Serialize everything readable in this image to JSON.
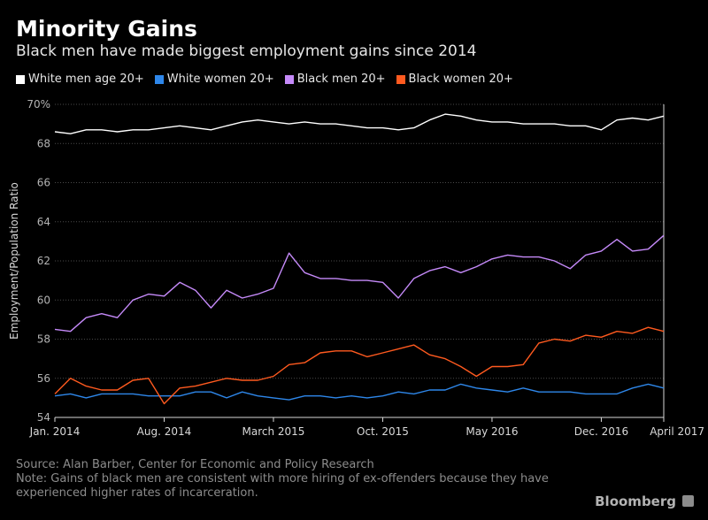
{
  "header": {
    "title": "Minority Gains",
    "subtitle": "Black men have made biggest employment gains since 2014"
  },
  "legend": [
    {
      "label": "White men age 20+",
      "color": "#ffffff"
    },
    {
      "label": "White women 20+",
      "color": "#2e87ea"
    },
    {
      "label": "Black men 20+",
      "color": "#c58af9"
    },
    {
      "label": "Black women 20+",
      "color": "#ff5a1f"
    }
  ],
  "footer": {
    "source": "Source: Alan Barber, Center for Economic and Policy Research",
    "note": "Note: Gains of black men are consistent with more hiring of ex-offenders because they have experienced higher rates of incarceration.",
    "brand": "Bloomberg"
  },
  "chart_data": {
    "type": "line",
    "ylabel": "Employment/Population Ratio",
    "ylim": [
      54,
      70
    ],
    "yticks": [
      54,
      56,
      58,
      60,
      62,
      64,
      66,
      68,
      70
    ],
    "ytick_labels": [
      "54",
      "56",
      "58",
      "60",
      "62",
      "64",
      "66",
      "68",
      "70%"
    ],
    "x": [
      "2014-01",
      "2014-02",
      "2014-03",
      "2014-04",
      "2014-05",
      "2014-06",
      "2014-07",
      "2014-08",
      "2014-09",
      "2014-10",
      "2014-11",
      "2014-12",
      "2015-01",
      "2015-02",
      "2015-03",
      "2015-04",
      "2015-05",
      "2015-06",
      "2015-07",
      "2015-08",
      "2015-09",
      "2015-10",
      "2015-11",
      "2015-12",
      "2016-01",
      "2016-02",
      "2016-03",
      "2016-04",
      "2016-05",
      "2016-06",
      "2016-07",
      "2016-08",
      "2016-09",
      "2016-10",
      "2016-11",
      "2016-12",
      "2017-01",
      "2017-02",
      "2017-03",
      "2017-04"
    ],
    "xticks": [
      {
        "x": "2014-01",
        "label": "Jan. 2014"
      },
      {
        "x": "2014-08",
        "label": "Aug. 2014"
      },
      {
        "x": "2015-03",
        "label": "March 2015"
      },
      {
        "x": "2015-10",
        "label": "Oct. 2015"
      },
      {
        "x": "2016-05",
        "label": "May 2016"
      },
      {
        "x": "2016-12",
        "label": "Dec. 2016"
      },
      {
        "x": "2017-04",
        "label": "April 2017"
      }
    ],
    "series": [
      {
        "name": "White men age 20+",
        "color": "#ffffff",
        "values": [
          68.6,
          68.5,
          68.7,
          68.7,
          68.6,
          68.7,
          68.7,
          68.8,
          68.9,
          68.8,
          68.7,
          68.9,
          69.1,
          69.2,
          69.1,
          69.0,
          69.1,
          69.0,
          69.0,
          68.9,
          68.8,
          68.8,
          68.7,
          68.8,
          69.2,
          69.5,
          69.4,
          69.2,
          69.1,
          69.1,
          69.0,
          69.0,
          69.0,
          68.9,
          68.9,
          68.7,
          69.2,
          69.3,
          69.2,
          69.4
        ]
      },
      {
        "name": "White women 20+",
        "color": "#2e87ea",
        "values": [
          55.1,
          55.2,
          55.0,
          55.2,
          55.2,
          55.2,
          55.1,
          55.1,
          55.1,
          55.3,
          55.3,
          55.0,
          55.3,
          55.1,
          55.0,
          54.9,
          55.1,
          55.1,
          55.0,
          55.1,
          55.0,
          55.1,
          55.3,
          55.2,
          55.4,
          55.4,
          55.7,
          55.5,
          55.4,
          55.3,
          55.5,
          55.3,
          55.3,
          55.3,
          55.2,
          55.2,
          55.2,
          55.5,
          55.7,
          55.5
        ]
      },
      {
        "name": "Black men 20+",
        "color": "#c58af9",
        "values": [
          58.5,
          58.4,
          59.1,
          59.3,
          59.1,
          60.0,
          60.3,
          60.2,
          60.9,
          60.5,
          59.6,
          60.5,
          60.1,
          60.3,
          60.6,
          62.4,
          61.4,
          61.1,
          61.1,
          61.0,
          61.0,
          60.9,
          60.1,
          61.1,
          61.5,
          61.7,
          61.4,
          61.7,
          62.1,
          62.3,
          62.2,
          62.2,
          62.0,
          61.6,
          62.3,
          62.5,
          63.1,
          62.5,
          62.6,
          63.3
        ]
      },
      {
        "name": "Black women 20+",
        "color": "#ff5a1f",
        "values": [
          55.2,
          56.0,
          55.6,
          55.4,
          55.4,
          55.9,
          56.0,
          54.7,
          55.5,
          55.6,
          55.8,
          56.0,
          55.9,
          55.9,
          56.1,
          56.7,
          56.8,
          57.3,
          57.4,
          57.4,
          57.1,
          57.3,
          57.5,
          57.7,
          57.2,
          57.0,
          56.6,
          56.1,
          56.6,
          56.6,
          56.7,
          57.8,
          58.0,
          57.9,
          58.2,
          58.1,
          58.4,
          58.3,
          58.6,
          58.4
        ]
      }
    ]
  }
}
